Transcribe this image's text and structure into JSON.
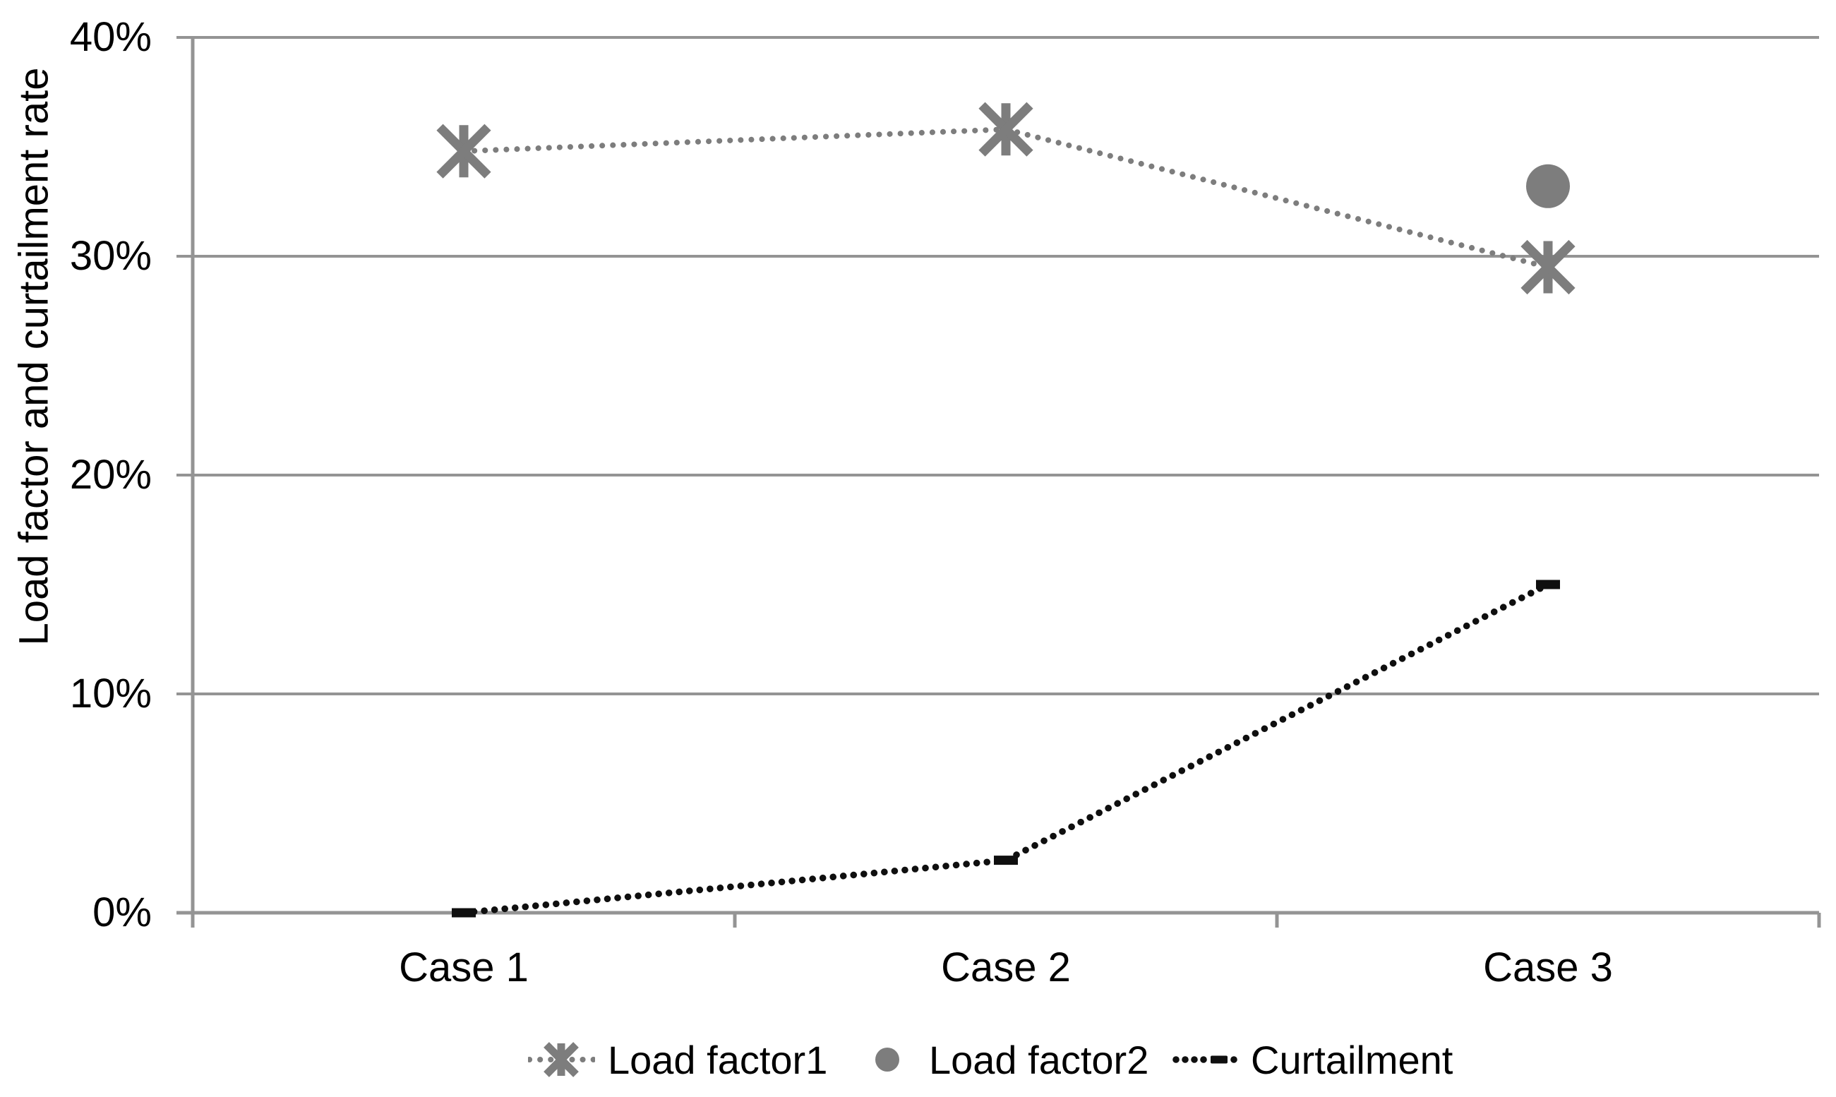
{
  "chart_data": {
    "type": "line",
    "categories": [
      "Case 1",
      "Case 2",
      "Case 3"
    ],
    "series": [
      {
        "name": "Load factor1",
        "type": "line",
        "line_style": "dotted",
        "marker": "asterisk",
        "color": "#7d7d7d",
        "values": [
          34.8,
          35.8,
          29.5
        ]
      },
      {
        "name": "Load factor2",
        "type": "scatter",
        "marker": "circle",
        "color": "#7d7d7d",
        "values": [
          null,
          null,
          33.2
        ]
      },
      {
        "name": "Curtailment",
        "type": "line",
        "line_style": "dotted",
        "marker": "dash",
        "color": "#0f0f0f",
        "values": [
          0,
          2.4,
          15
        ]
      }
    ],
    "title": "",
    "xlabel": "",
    "ylabel": "Load factor and curtailment rate",
    "ylim": [
      0,
      40
    ],
    "ytick_values": [
      0,
      10,
      20,
      30,
      40
    ],
    "ytick_labels": [
      "0%",
      "10%",
      "20%",
      "30%",
      "40%"
    ],
    "grid": "horizontal-only",
    "legend_position": "bottom",
    "colors": {
      "axis_and_grid": "#949494",
      "series_gray": "#7d7d7d",
      "series_black": "#0f0f0f",
      "text": "#000000",
      "background": "#ffffff"
    }
  }
}
